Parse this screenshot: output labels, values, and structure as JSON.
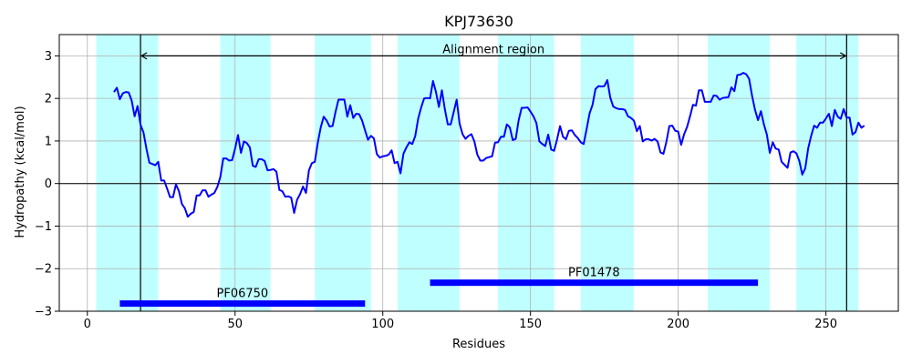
{
  "chart_data": {
    "type": "line",
    "title": "KPJ73630",
    "xlabel": "Residues",
    "ylabel": "Hydropathy (kcal/mol)",
    "xlim": [
      -9.5,
      274.5
    ],
    "ylim": [
      -3,
      3.5
    ],
    "xticks": [
      0,
      50,
      100,
      150,
      200,
      250
    ],
    "yticks": [
      -3,
      -2,
      -1,
      0,
      1,
      2,
      3
    ],
    "grid": true,
    "colors": {
      "line": "#0000ff",
      "band": "#c0ffff",
      "domain": "#0000ff",
      "grid": "#b0b0b0"
    },
    "series": [
      {
        "color": "#0000ff",
        "points": [
          [
            9,
            2.15
          ],
          [
            10,
            2.25
          ],
          [
            11,
            1.98
          ],
          [
            12,
            2.12
          ],
          [
            13,
            2.15
          ],
          [
            14,
            2.14
          ],
          [
            15,
            1.95
          ],
          [
            16,
            1.58
          ],
          [
            17,
            1.82
          ],
          [
            18,
            1.38
          ],
          [
            19,
            1.2
          ],
          [
            20,
            0.82
          ],
          [
            21,
            0.49
          ],
          [
            22,
            0.46
          ],
          [
            23,
            0.43
          ],
          [
            24,
            0.51
          ],
          [
            25,
            0.07
          ],
          [
            26,
            0.07
          ],
          [
            27,
            -0.12
          ],
          [
            28,
            -0.32
          ],
          [
            29,
            -0.32
          ],
          [
            30,
            -0.02
          ],
          [
            31,
            -0.18
          ],
          [
            32,
            -0.48
          ],
          [
            33,
            -0.58
          ],
          [
            34,
            -0.78
          ],
          [
            35,
            -0.71
          ],
          [
            36,
            -0.67
          ],
          [
            37,
            -0.28
          ],
          [
            38,
            -0.28
          ],
          [
            39,
            -0.16
          ],
          [
            40,
            -0.16
          ],
          [
            41,
            -0.31
          ],
          [
            42,
            -0.26
          ],
          [
            43,
            -0.22
          ],
          [
            44,
            -0.08
          ],
          [
            45,
            0.15
          ],
          [
            46,
            0.59
          ],
          [
            47,
            0.59
          ],
          [
            48,
            0.54
          ],
          [
            49,
            0.55
          ],
          [
            50,
            0.82
          ],
          [
            51,
            1.14
          ],
          [
            52,
            0.72
          ],
          [
            53,
            0.99
          ],
          [
            54,
            0.95
          ],
          [
            55,
            0.85
          ],
          [
            56,
            0.42
          ],
          [
            57,
            0.39
          ],
          [
            58,
            0.57
          ],
          [
            59,
            0.57
          ],
          [
            60,
            0.53
          ],
          [
            61,
            0.31
          ],
          [
            62,
            0.32
          ],
          [
            63,
            0.34
          ],
          [
            64,
            0.28
          ],
          [
            65,
            -0.15
          ],
          [
            66,
            -0.18
          ],
          [
            67,
            -0.31
          ],
          [
            68,
            -0.3
          ],
          [
            69,
            -0.33
          ],
          [
            70,
            -0.69
          ],
          [
            71,
            -0.38
          ],
          [
            72,
            -0.25
          ],
          [
            73,
            -0.07
          ],
          [
            74,
            -0.22
          ],
          [
            75,
            0.31
          ],
          [
            76,
            0.48
          ],
          [
            77,
            0.51
          ],
          [
            78,
            0.96
          ],
          [
            79,
            1.32
          ],
          [
            80,
            1.57
          ],
          [
            81,
            1.48
          ],
          [
            82,
            1.34
          ],
          [
            83,
            1.35
          ],
          [
            84,
            1.68
          ],
          [
            85,
            1.97
          ],
          [
            86,
            1.97
          ],
          [
            87,
            1.97
          ],
          [
            88,
            1.57
          ],
          [
            89,
            1.84
          ],
          [
            90,
            1.54
          ],
          [
            91,
            1.64
          ],
          [
            92,
            1.63
          ],
          [
            93,
            1.48
          ],
          [
            94,
            1.25
          ],
          [
            95,
            1.03
          ],
          [
            96,
            1.12
          ],
          [
            97,
            1.06
          ],
          [
            98,
            0.69
          ],
          [
            99,
            0.61
          ],
          [
            100,
            0.64
          ],
          [
            101,
            0.65
          ],
          [
            102,
            0.68
          ],
          [
            103,
            0.78
          ],
          [
            104,
            0.48
          ],
          [
            105,
            0.51
          ],
          [
            106,
            0.24
          ],
          [
            107,
            0.7
          ],
          [
            108,
            0.85
          ],
          [
            109,
            0.97
          ],
          [
            110,
            0.93
          ],
          [
            111,
            1.12
          ],
          [
            112,
            1.53
          ],
          [
            113,
            1.79
          ],
          [
            114,
            2.0
          ],
          [
            115,
            2.01
          ],
          [
            116,
            2.0
          ],
          [
            117,
            2.41
          ],
          [
            118,
            2.15
          ],
          [
            119,
            1.8
          ],
          [
            120,
            2.19
          ],
          [
            121,
            1.75
          ],
          [
            122,
            1.39
          ],
          [
            123,
            1.39
          ],
          [
            124,
            1.68
          ],
          [
            125,
            1.97
          ],
          [
            126,
            1.41
          ],
          [
            127,
            1.16
          ],
          [
            128,
            1.05
          ],
          [
            129,
            1.12
          ],
          [
            130,
            1.16
          ],
          [
            131,
            0.99
          ],
          [
            132,
            0.68
          ],
          [
            133,
            0.54
          ],
          [
            134,
            0.54
          ],
          [
            135,
            0.6
          ],
          [
            136,
            0.62
          ],
          [
            137,
            0.64
          ],
          [
            138,
            0.96
          ],
          [
            139,
            0.97
          ],
          [
            140,
            1.1
          ],
          [
            141,
            1.1
          ],
          [
            142,
            1.39
          ],
          [
            143,
            1.32
          ],
          [
            144,
            1.02
          ],
          [
            145,
            1.05
          ],
          [
            146,
            1.49
          ],
          [
            147,
            1.78
          ],
          [
            148,
            1.78
          ],
          [
            149,
            1.79
          ],
          [
            150,
            1.69
          ],
          [
            151,
            1.58
          ],
          [
            152,
            1.42
          ],
          [
            153,
            0.99
          ],
          [
            154,
            0.93
          ],
          [
            155,
            0.88
          ],
          [
            156,
            1.15
          ],
          [
            157,
            0.8
          ],
          [
            158,
            0.77
          ],
          [
            159,
            1.04
          ],
          [
            160,
            1.35
          ],
          [
            161,
            1.1
          ],
          [
            162,
            1.04
          ],
          [
            163,
            1.24
          ],
          [
            164,
            1.25
          ],
          [
            165,
            1.14
          ],
          [
            166,
            1.07
          ],
          [
            167,
            0.97
          ],
          [
            168,
            0.93
          ],
          [
            169,
            1.28
          ],
          [
            170,
            1.65
          ],
          [
            171,
            1.85
          ],
          [
            172,
            2.22
          ],
          [
            173,
            2.29
          ],
          [
            174,
            2.28
          ],
          [
            175,
            2.29
          ],
          [
            176,
            2.43
          ],
          [
            177,
            2.02
          ],
          [
            178,
            1.81
          ],
          [
            179,
            1.77
          ],
          [
            180,
            1.75
          ],
          [
            181,
            1.75
          ],
          [
            182,
            1.73
          ],
          [
            183,
            1.58
          ],
          [
            184,
            1.54
          ],
          [
            185,
            1.48
          ],
          [
            186,
            1.23
          ],
          [
            187,
            1.35
          ],
          [
            188,
            0.99
          ],
          [
            189,
            1.04
          ],
          [
            190,
            1.04
          ],
          [
            191,
            1.01
          ],
          [
            192,
            1.05
          ],
          [
            193,
            0.99
          ],
          [
            194,
            0.73
          ],
          [
            195,
            0.7
          ],
          [
            196,
            0.98
          ],
          [
            197,
            1.35
          ],
          [
            198,
            1.36
          ],
          [
            199,
            1.24
          ],
          [
            200,
            1.22
          ],
          [
            201,
            0.91
          ],
          [
            202,
            1.16
          ],
          [
            203,
            1.33
          ],
          [
            204,
            1.58
          ],
          [
            205,
            1.85
          ],
          [
            206,
            1.83
          ],
          [
            207,
            2.19
          ],
          [
            208,
            2.19
          ],
          [
            209,
            1.92
          ],
          [
            210,
            1.92
          ],
          [
            211,
            1.92
          ],
          [
            212,
            2.07
          ],
          [
            213,
            2.06
          ],
          [
            214,
            1.97
          ],
          [
            215,
            2.01
          ],
          [
            216,
            2.02
          ],
          [
            217,
            2.03
          ],
          [
            218,
            2.26
          ],
          [
            219,
            2.17
          ],
          [
            220,
            2.55
          ],
          [
            221,
            2.56
          ],
          [
            222,
            2.6
          ],
          [
            223,
            2.57
          ],
          [
            224,
            2.46
          ],
          [
            225,
            2.06
          ],
          [
            226,
            1.73
          ],
          [
            227,
            1.49
          ],
          [
            228,
            1.7
          ],
          [
            229,
            1.39
          ],
          [
            230,
            1.15
          ],
          [
            231,
            0.72
          ],
          [
            232,
            0.97
          ],
          [
            233,
            0.82
          ],
          [
            234,
            0.8
          ],
          [
            235,
            0.51
          ],
          [
            236,
            0.44
          ],
          [
            237,
            0.37
          ],
          [
            238,
            0.73
          ],
          [
            239,
            0.76
          ],
          [
            240,
            0.71
          ],
          [
            241,
            0.53
          ],
          [
            242,
            0.21
          ],
          [
            243,
            0.36
          ],
          [
            244,
            0.83
          ],
          [
            245,
            1.12
          ],
          [
            246,
            1.36
          ],
          [
            247,
            1.31
          ],
          [
            248,
            1.43
          ],
          [
            249,
            1.43
          ],
          [
            250,
            1.53
          ],
          [
            251,
            1.64
          ],
          [
            252,
            1.35
          ],
          [
            253,
            1.73
          ],
          [
            254,
            1.57
          ],
          [
            255,
            1.52
          ],
          [
            256,
            1.75
          ],
          [
            257,
            1.55
          ],
          [
            258,
            1.55
          ],
          [
            259,
            1.15
          ],
          [
            260,
            1.21
          ],
          [
            261,
            1.43
          ],
          [
            262,
            1.31
          ],
          [
            263,
            1.36
          ]
        ]
      }
    ],
    "bands": [
      [
        3,
        24
      ],
      [
        45,
        62
      ],
      [
        77,
        96
      ],
      [
        105,
        126
      ],
      [
        139,
        158
      ],
      [
        167,
        185
      ],
      [
        210,
        231
      ],
      [
        240,
        261
      ]
    ],
    "alignment": {
      "label": "Alignment region",
      "x_start": 18,
      "x_end": 257,
      "y": 3.0
    },
    "domains": [
      {
        "name": "PF06750",
        "x_start": 11,
        "x_end": 94,
        "y": -2.82
      },
      {
        "name": "PF01478",
        "x_start": 116,
        "x_end": 227,
        "y": -2.33
      }
    ]
  }
}
